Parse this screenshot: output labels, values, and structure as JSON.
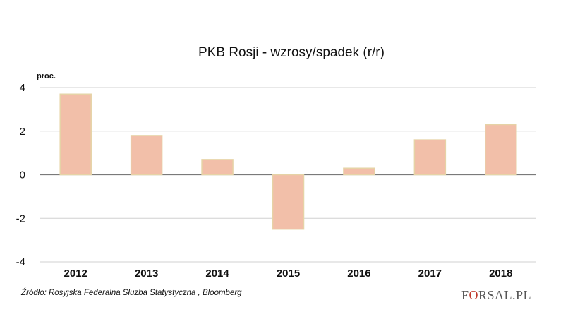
{
  "chart_data": {
    "type": "bar",
    "title": "PKB Rosji - wzrosy/spadek (r/r)",
    "ylabel": "proc.",
    "xlabel": "",
    "categories": [
      "2012",
      "2013",
      "2014",
      "2015",
      "2016",
      "2017",
      "2018"
    ],
    "values": [
      3.7,
      1.8,
      0.7,
      -2.5,
      0.3,
      1.6,
      2.3
    ],
    "ylim": [
      -4,
      4
    ],
    "yticks": [
      "4",
      "2",
      "0",
      "-2",
      "-4"
    ],
    "grid": true,
    "colors": {
      "bar_fill": "#f2bfa9",
      "bar_stroke": "#e6d3a6"
    }
  },
  "footer": {
    "source": "Źródło: Rosyjska Federalna Służba Statystyczna , Bloomberg",
    "brand_pre": "F",
    "brand_accent": "O",
    "brand_post": "RSAL.PL"
  }
}
